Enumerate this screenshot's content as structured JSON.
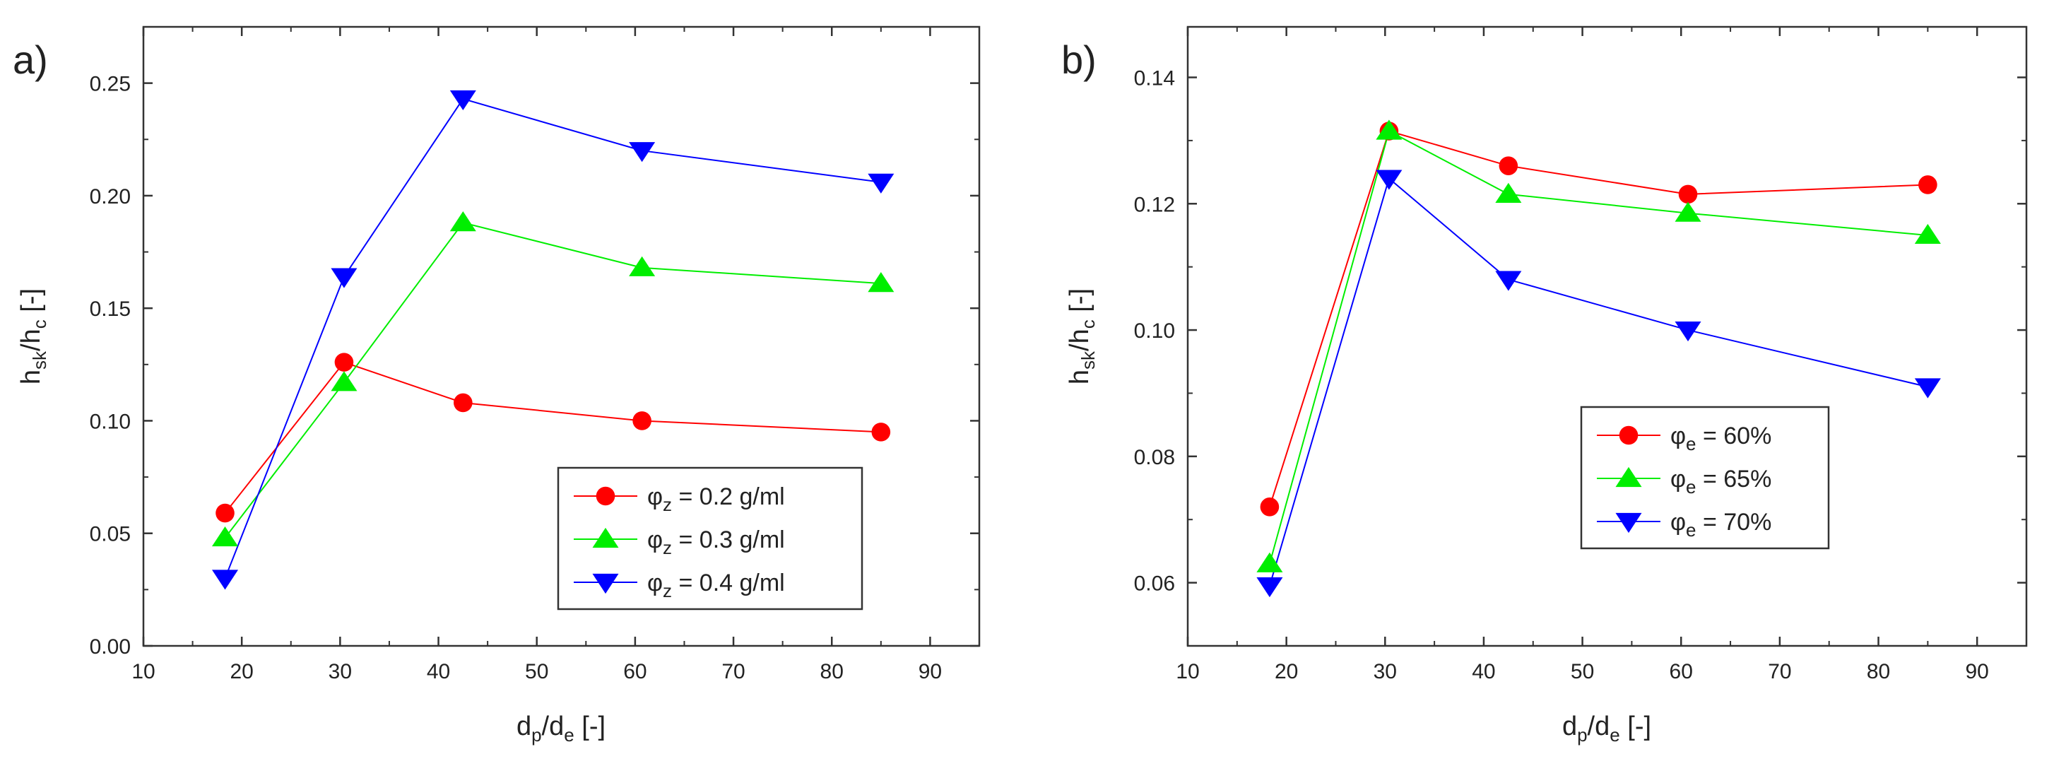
{
  "chart_data": [
    {
      "type": "line",
      "panel_label": "a)",
      "xlabel": {
        "main": "d",
        "sub1": "p",
        "mid": "/d",
        "sub2": "e",
        "tail": " [-]"
      },
      "ylabel": {
        "main": "h",
        "sub1": "sk",
        "mid": "/h",
        "sub2": "c",
        "tail": " [-]"
      },
      "xlim": [
        10,
        95
      ],
      "ylim": [
        0,
        0.275
      ],
      "xticks": [
        10,
        20,
        30,
        40,
        50,
        60,
        70,
        80,
        90
      ],
      "xtick_labels": [
        "10",
        "20",
        "30",
        "40",
        "50",
        "60",
        "70",
        "80",
        "90"
      ],
      "yticks": [
        0.0,
        0.05,
        0.1,
        0.15,
        0.2,
        0.25
      ],
      "ytick_labels": [
        "0.00",
        "0.05",
        "0.10",
        "0.15",
        "0.20",
        "0.25"
      ],
      "legend_position": "lower-right",
      "series": [
        {
          "name": "0.2 g/ml",
          "legend_symbol": "φ",
          "legend_sub": "z",
          "legend_text": " = 0.2 g/ml",
          "color": "#ff0000",
          "marker": "circle",
          "x": [
            18.3,
            30.4,
            42.5,
            60.7,
            85.0
          ],
          "y": [
            0.059,
            0.126,
            0.108,
            0.1,
            0.095
          ]
        },
        {
          "name": "0.3 g/ml",
          "legend_symbol": "φ",
          "legend_sub": "z",
          "legend_text": " = 0.3 g/ml",
          "color": "#00ee00",
          "marker": "triangle-up",
          "x": [
            18.3,
            30.4,
            42.5,
            60.7,
            85.0
          ],
          "y": [
            0.048,
            0.117,
            0.188,
            0.168,
            0.161
          ]
        },
        {
          "name": "0.4 g/ml",
          "legend_symbol": "φ",
          "legend_sub": "z",
          "legend_text": " = 0.4 g/ml",
          "color": "#0000ff",
          "marker": "triangle-down",
          "x": [
            18.3,
            30.4,
            42.5,
            60.7,
            85.0
          ],
          "y": [
            0.03,
            0.164,
            0.243,
            0.22,
            0.206
          ]
        }
      ]
    },
    {
      "type": "line",
      "panel_label": "b)",
      "xlabel": {
        "main": "d",
        "sub1": "p",
        "mid": "/d",
        "sub2": "e",
        "tail": " [-]"
      },
      "ylabel": {
        "main": "h",
        "sub1": "sk",
        "mid": "/h",
        "sub2": "c",
        "tail": " [-]"
      },
      "xlim": [
        10,
        95
      ],
      "ylim": [
        0.05,
        0.148
      ],
      "xticks": [
        10,
        20,
        30,
        40,
        50,
        60,
        70,
        80,
        90
      ],
      "xtick_labels": [
        "10",
        "20",
        "30",
        "40",
        "50",
        "60",
        "70",
        "80",
        "90"
      ],
      "yticks": [
        0.06,
        0.08,
        0.1,
        0.12,
        0.14
      ],
      "ytick_labels": [
        "0.06",
        "0.08",
        "0.10",
        "0.12",
        "0.14"
      ],
      "legend_position": "center-right",
      "series": [
        {
          "name": "60%",
          "legend_symbol": "φ",
          "legend_sub": "e",
          "legend_text": " = 60%",
          "color": "#ff0000",
          "marker": "circle",
          "x": [
            18.3,
            30.4,
            42.5,
            60.7,
            85.0
          ],
          "y": [
            0.072,
            0.1315,
            0.126,
            0.1215,
            0.123
          ]
        },
        {
          "name": "65%",
          "legend_symbol": "φ",
          "legend_sub": "e",
          "legend_text": " = 65%",
          "color": "#00ee00",
          "marker": "triangle-up",
          "x": [
            18.3,
            30.4,
            42.5,
            60.7,
            85.0
          ],
          "y": [
            0.063,
            0.1315,
            0.1215,
            0.1185,
            0.115
          ]
        },
        {
          "name": "70%",
          "legend_symbol": "φ",
          "legend_sub": "e",
          "legend_text": " = 70%",
          "color": "#0000ff",
          "marker": "triangle-down",
          "x": [
            18.3,
            30.4,
            42.5,
            60.7,
            85.0
          ],
          "y": [
            0.0595,
            0.124,
            0.108,
            0.1,
            0.091
          ]
        }
      ]
    }
  ]
}
